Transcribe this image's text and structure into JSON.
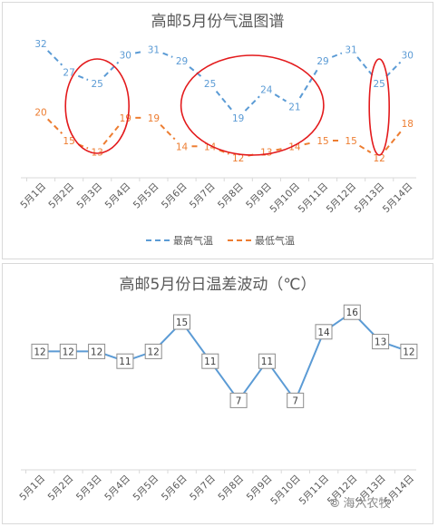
{
  "chart_data": [
    {
      "type": "line",
      "title": "高邮5月份气温图谱",
      "categories": [
        "5月1日",
        "5月2日",
        "5月3日",
        "5月4日",
        "5月5日",
        "5月6日",
        "5月7日",
        "5月8日",
        "5月9日",
        "5月10日",
        "5月11日",
        "5月12日",
        "5月13日",
        "5月14日"
      ],
      "series": [
        {
          "name": "最高气温",
          "color": "#5b9bd5",
          "dashed": true,
          "values": [
            32,
            27,
            25,
            30,
            31,
            29,
            25,
            19,
            24,
            21,
            29,
            31,
            25,
            30
          ]
        },
        {
          "name": "最低气温",
          "color": "#ed7d31",
          "dashed": true,
          "values": [
            20,
            15,
            13,
            19,
            19,
            14,
            14,
            12,
            13,
            14,
            15,
            15,
            12,
            18
          ]
        }
      ],
      "ylim": [
        8,
        36
      ],
      "grid": false,
      "legend": "bottom",
      "annotations": [
        {
          "shape": "ellipse",
          "color": "#e31a1c",
          "around": [
            "5月3日"
          ]
        },
        {
          "shape": "ellipse",
          "color": "#e31a1c",
          "around": [
            "5月7日",
            "5月8日",
            "5月9日",
            "5月10日"
          ]
        },
        {
          "shape": "ellipse",
          "color": "#e31a1c",
          "around": [
            "5月13日"
          ]
        }
      ]
    },
    {
      "type": "line",
      "title": "高邮5月份日温差波动（℃）",
      "categories": [
        "5月1日",
        "5月2日",
        "5月3日",
        "5月4日",
        "5月5日",
        "5月6日",
        "5月7日",
        "5月8日",
        "5月9日",
        "5月10日",
        "5月11日",
        "5月12日",
        "5月13日",
        "5月14日"
      ],
      "series": [
        {
          "name": "",
          "color": "#5b9bd5",
          "values": [
            12,
            12,
            12,
            11,
            12,
            15,
            11,
            7,
            11,
            7,
            14,
            16,
            13,
            12
          ]
        }
      ],
      "ylim": [
        0,
        20
      ],
      "grid": false,
      "legend": "none"
    }
  ],
  "watermark": "海六农牧",
  "watermark_icon": "wechat-icon"
}
